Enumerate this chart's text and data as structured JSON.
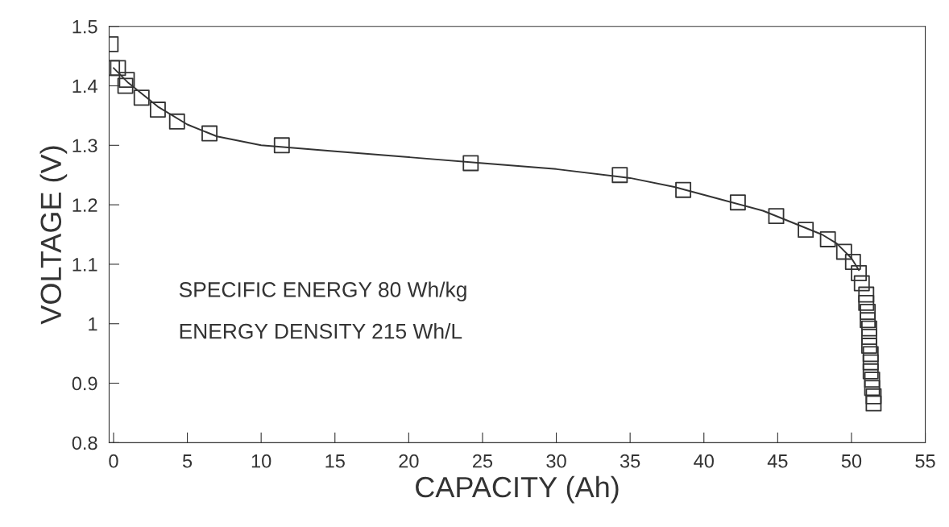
{
  "chart_data": {
    "type": "scatter",
    "xlabel": "CAPACITY (Ah)",
    "ylabel": "VOLTAGE (V)",
    "xlim": [
      -0.3,
      55
    ],
    "ylim": [
      0.8,
      1.5
    ],
    "xticks": [
      0,
      5,
      10,
      15,
      20,
      25,
      30,
      35,
      40,
      45,
      50,
      55
    ],
    "yticks": [
      0.8,
      0.9,
      1,
      1.1,
      1.2,
      1.3,
      1.4,
      1.5
    ],
    "grid": false,
    "annotations": [
      "SPECIFIC ENERGY 80 Wh/kg",
      "ENERGY DENSITY 215 Wh/L"
    ],
    "series": [
      {
        "color": "#333333",
        "marker": "square",
        "x": [
          -0.2,
          -0.1,
          0.3,
          0.9,
          0.8,
          1.9,
          3.0,
          4.3,
          6.5,
          11.4,
          24.2,
          34.3,
          38.6,
          42.3,
          44.9,
          46.9,
          48.4,
          49.5,
          50.1,
          50.5,
          50.7,
          51.0,
          51.0,
          51.1,
          51.1,
          51.2,
          51.2,
          51.2,
          51.3,
          51.3,
          51.3,
          51.4,
          51.4,
          51.5,
          51.5
        ],
        "values": [
          1.47,
          1.43,
          1.43,
          1.41,
          1.4,
          1.38,
          1.36,
          1.34,
          1.32,
          1.3,
          1.27,
          1.25,
          1.225,
          1.204,
          1.181,
          1.158,
          1.142,
          1.121,
          1.104,
          1.085,
          1.068,
          1.049,
          1.035,
          1.02,
          1.006,
          0.992,
          0.978,
          0.963,
          0.949,
          0.935,
          0.92,
          0.906,
          0.892,
          0.878,
          0.866
        ]
      },
      {
        "type": "line",
        "color": "#333333",
        "line_style": "solid",
        "x": [
          0,
          1,
          2,
          3,
          5,
          7,
          10,
          15,
          20,
          25,
          30,
          35,
          38,
          41,
          44,
          46,
          48,
          49,
          50,
          50.5
        ],
        "values": [
          1.43,
          1.405,
          1.385,
          1.365,
          1.335,
          1.315,
          1.3,
          1.29,
          1.28,
          1.27,
          1.26,
          1.245,
          1.23,
          1.21,
          1.19,
          1.17,
          1.15,
          1.135,
          1.11,
          1.09
        ]
      }
    ]
  }
}
